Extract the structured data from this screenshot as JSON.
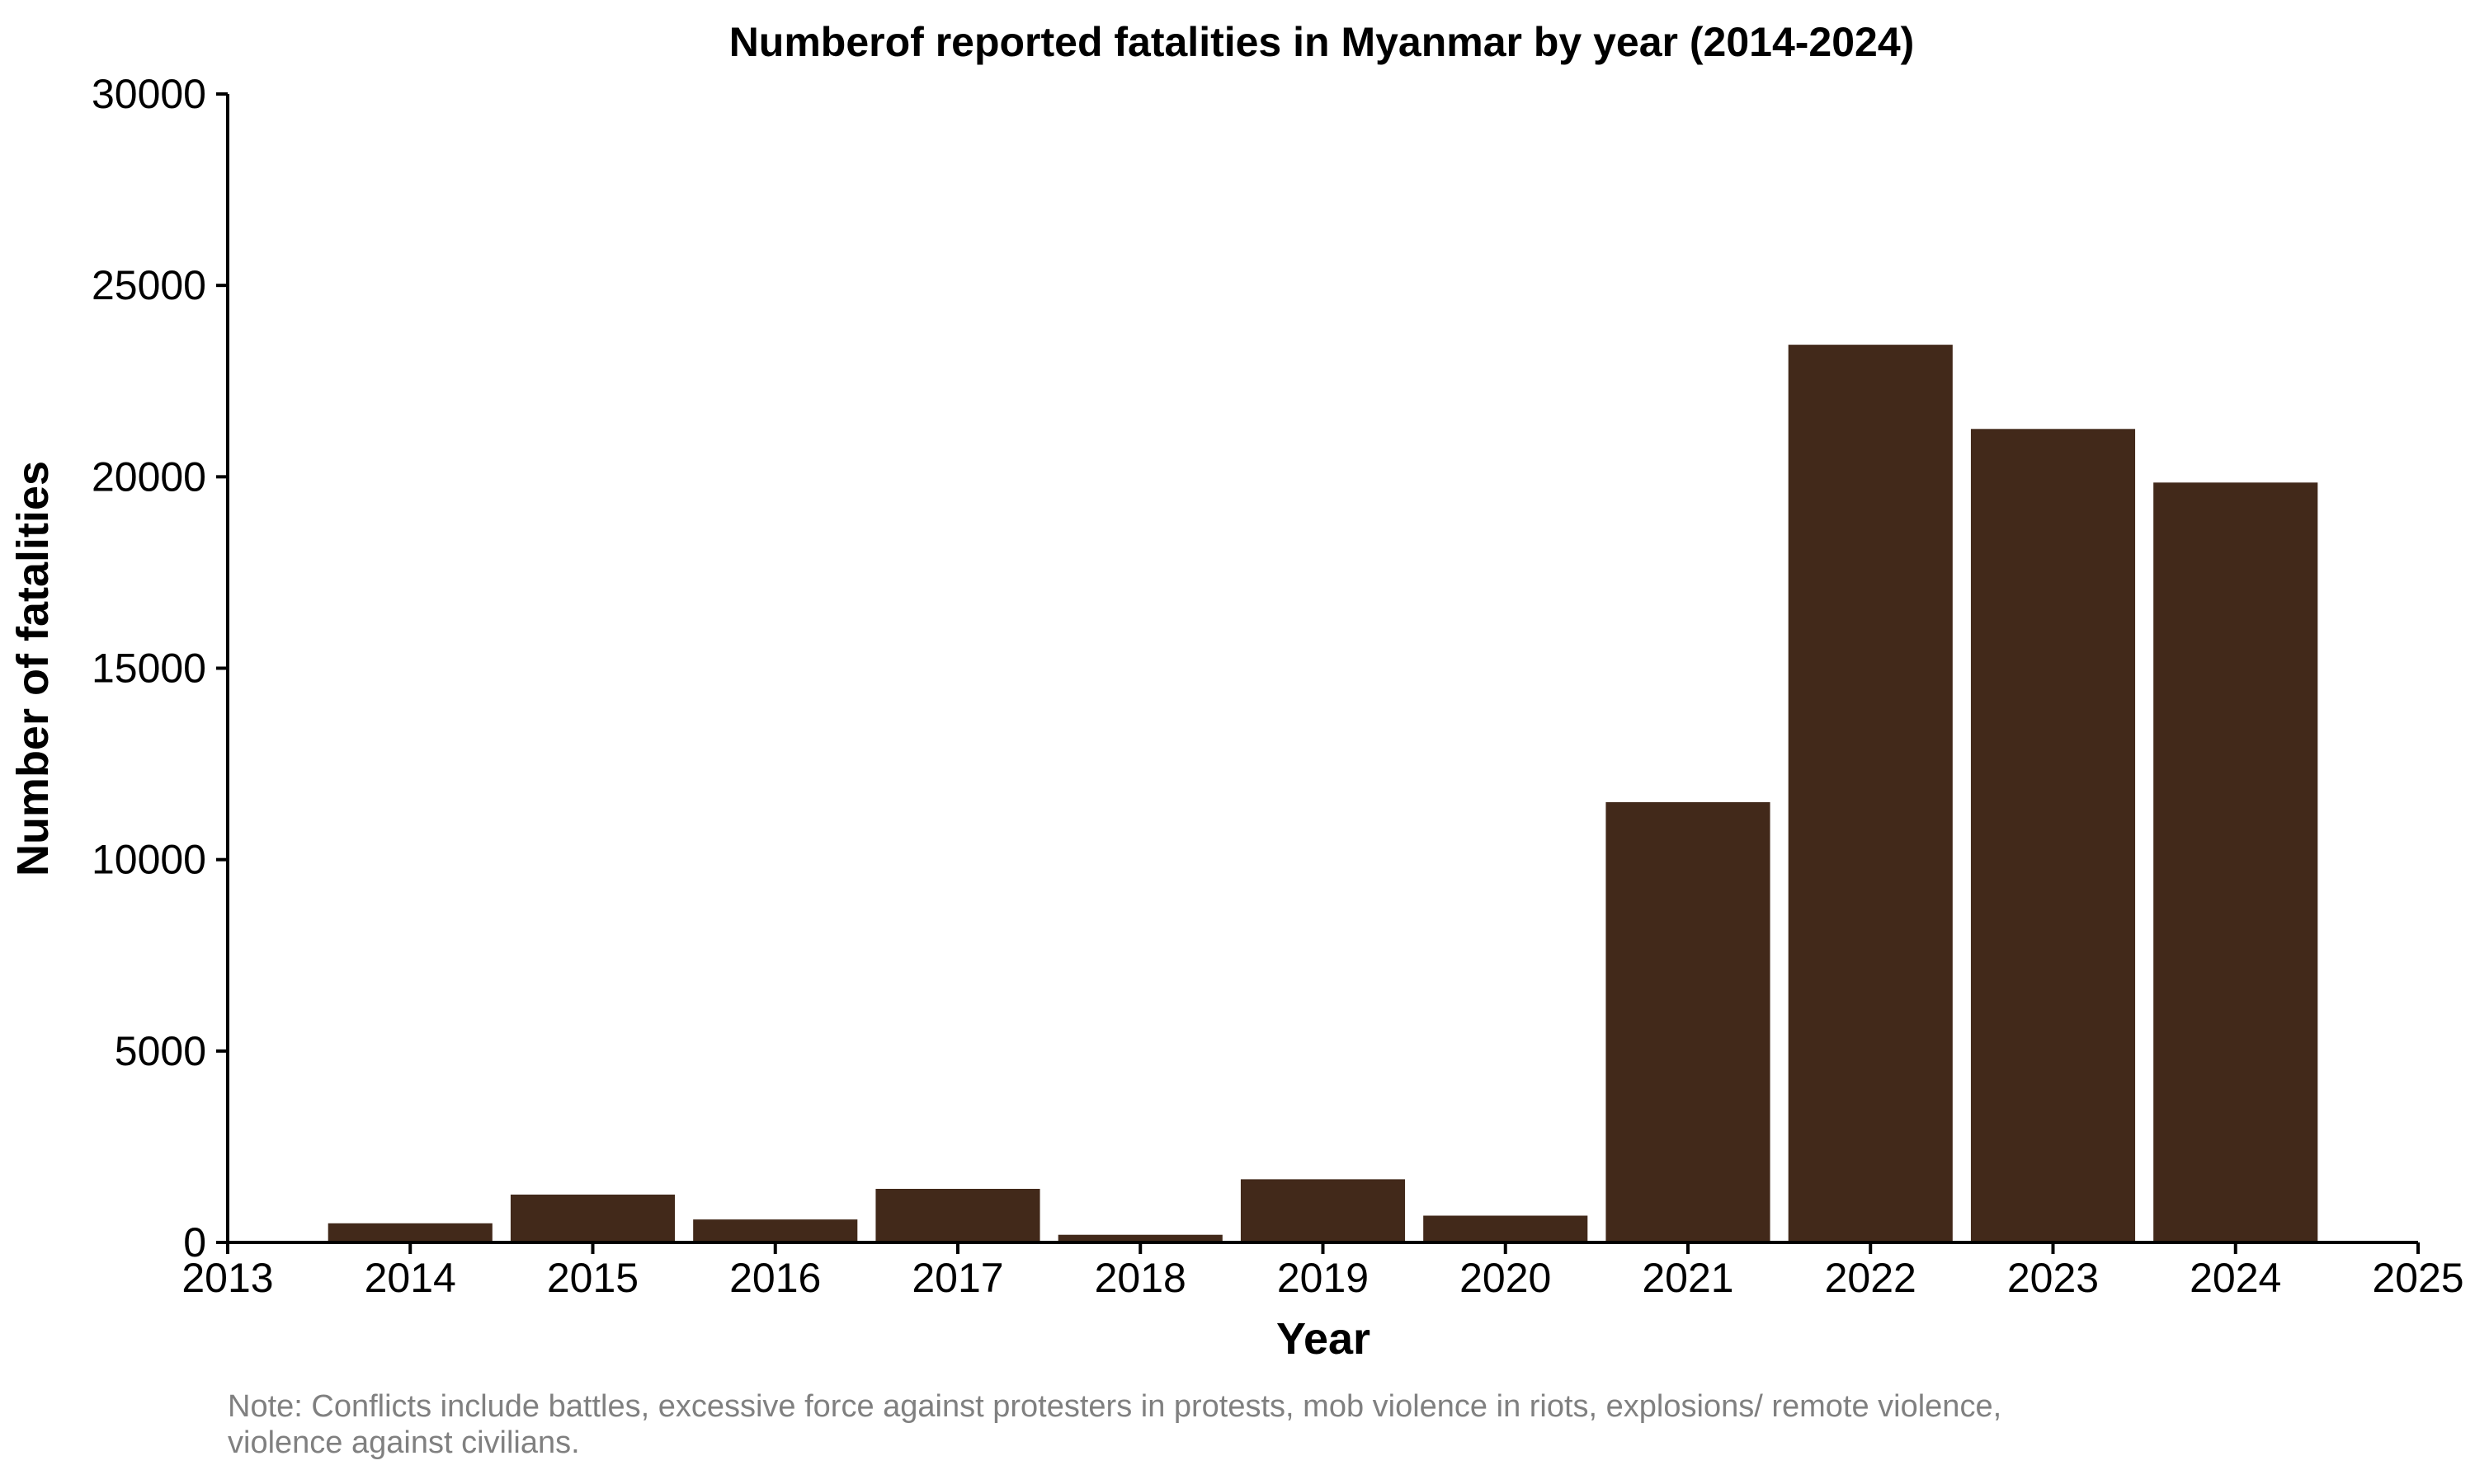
{
  "chart_data": {
    "type": "bar",
    "title": "Numberof reported fatalities in Myanmar by year (2014-2024)",
    "xlabel": "Year",
    "ylabel": "Number of fatalities",
    "x": [
      2014,
      2015,
      2016,
      2017,
      2018,
      2019,
      2020,
      2021,
      2022,
      2023,
      2024
    ],
    "values": [
      500,
      1250,
      600,
      1400,
      200,
      1650,
      700,
      11500,
      23450,
      21250,
      19850
    ],
    "xlim": [
      2013,
      2025
    ],
    "ylim": [
      0,
      30000
    ],
    "x_ticks": [
      "2013",
      "2014",
      "2015",
      "2016",
      "2017",
      "2018",
      "2019",
      "2020",
      "2021",
      "2022",
      "2023",
      "2024",
      "2025"
    ],
    "y_ticks": [
      "0",
      "5000",
      "10000",
      "15000",
      "20000",
      "25000",
      "30000"
    ],
    "grid": false,
    "legend": "none",
    "bar_color": "#42291A",
    "note_lines": [
      "Note: Conflicts include battles, excessive force against protesters in protests, mob violence in riots, explosions/ remote violence,",
      "violence against civilians."
    ]
  }
}
